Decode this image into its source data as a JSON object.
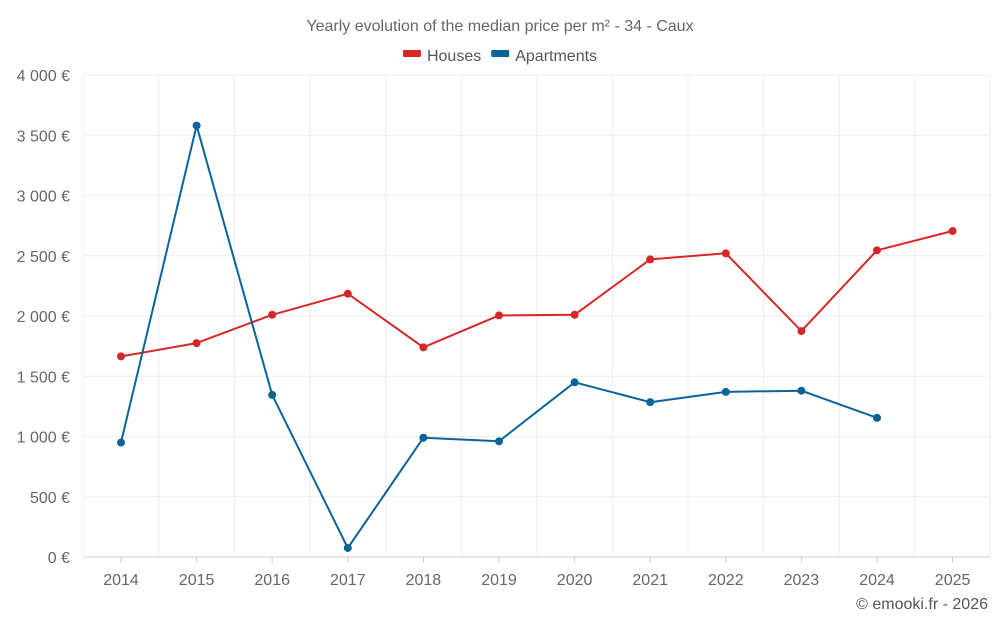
{
  "chart_data": {
    "type": "line",
    "title": "Yearly evolution of the median price per m² - 34 - Caux",
    "categories": [
      "2014",
      "2015",
      "2016",
      "2017",
      "2018",
      "2019",
      "2020",
      "2021",
      "2022",
      "2023",
      "2024",
      "2025"
    ],
    "series": [
      {
        "name": "Houses",
        "color": "#d62728",
        "values": [
          1665,
          1775,
          2010,
          2185,
          1740,
          2005,
          2010,
          2470,
          2520,
          1875,
          2545,
          2705
        ]
      },
      {
        "name": "Apartments",
        "color": "#0b6398",
        "values": [
          950,
          3580,
          1345,
          75,
          990,
          960,
          1450,
          1285,
          1370,
          1380,
          1155,
          null
        ]
      }
    ],
    "ylim": [
      0,
      4000
    ],
    "yticks": [
      0,
      500,
      1000,
      1500,
      2000,
      2500,
      3000,
      3500,
      4000
    ],
    "ytick_labels": [
      "0 €",
      "500 €",
      "1 000 €",
      "1 500 €",
      "2 000 €",
      "2 500 €",
      "3 000 €",
      "3 500 €",
      "4 000 €"
    ],
    "xlabel": "",
    "ylabel": "",
    "legend_position": "top-center",
    "grid": true
  },
  "credit": "© emooki.fr - 2026"
}
